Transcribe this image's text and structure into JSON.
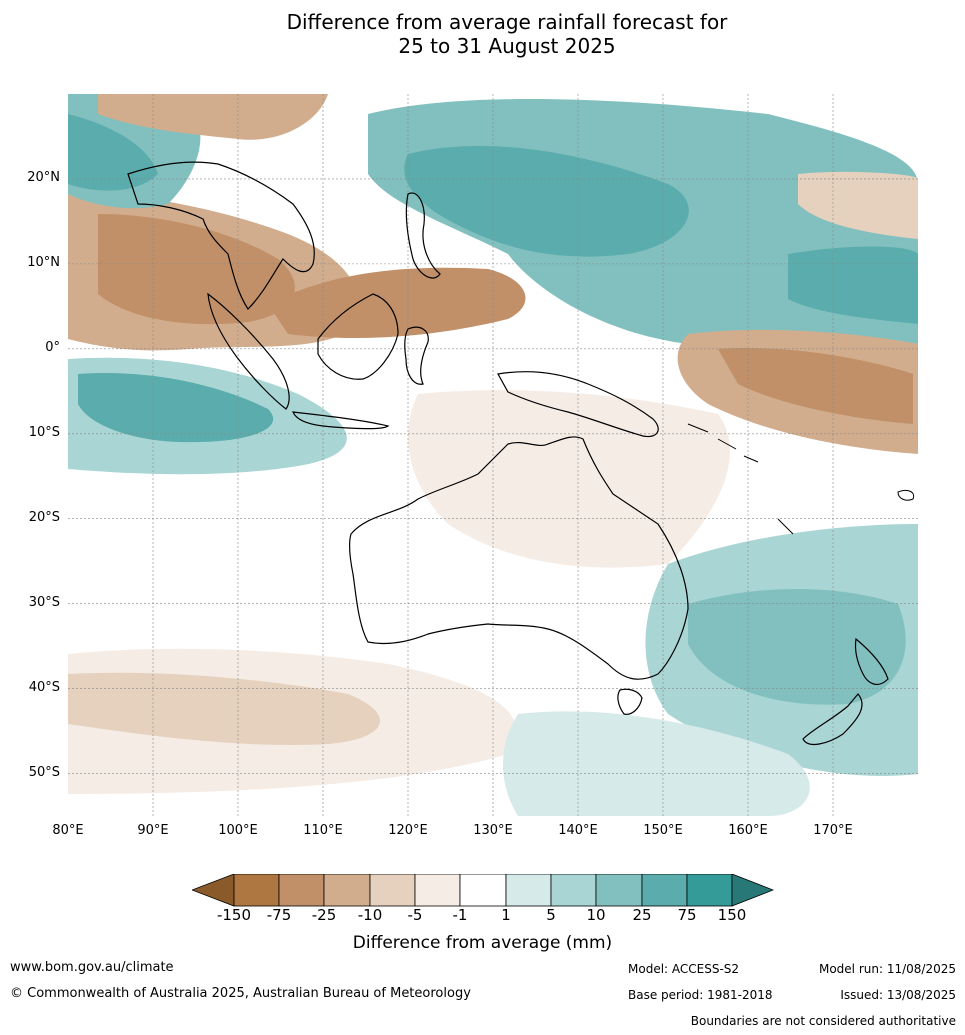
{
  "title": {
    "line1": "Difference from average rainfall forecast for",
    "line2": "25 to 31 August 2025"
  },
  "map": {
    "lat_labels": [
      "20°N",
      "10°N",
      "0°",
      "10°S",
      "20°S",
      "30°S",
      "40°S",
      "50°S"
    ],
    "lon_labels": [
      "80°E",
      "90°E",
      "100°E",
      "110°E",
      "120°E",
      "130°E",
      "140°E",
      "150°E",
      "160°E",
      "170°E"
    ],
    "extent": {
      "lon": [
        80,
        180
      ],
      "lat": [
        -55,
        30
      ]
    }
  },
  "legend": {
    "ticks": [
      "-150",
      "-75",
      "-25",
      "-10",
      "-5",
      "-1",
      "1",
      "5",
      "10",
      "25",
      "75",
      "150"
    ],
    "colors": [
      "#8b5a2b",
      "#ae7640",
      "#c19068",
      "#d1ad8d",
      "#e5d1bd",
      "#f5ece6",
      "#ffffff",
      "#d5eae9",
      "#a9d5d4",
      "#81c0bf",
      "#5aadac",
      "#349b99",
      "#287877"
    ],
    "label": "Difference from average (mm)"
  },
  "footer": {
    "url": "www.bom.gov.au/climate",
    "copyright": "© Commonwealth of Australia 2025, Australian Bureau of Meteorology",
    "model": "Model: ACCESS-S2",
    "base_period": "Base period: 1981-2018",
    "model_run": "Model run: 11/08/2025",
    "issued": "Issued: 13/08/2025",
    "disclaimer": "Boundaries are not considered authoritative"
  }
}
